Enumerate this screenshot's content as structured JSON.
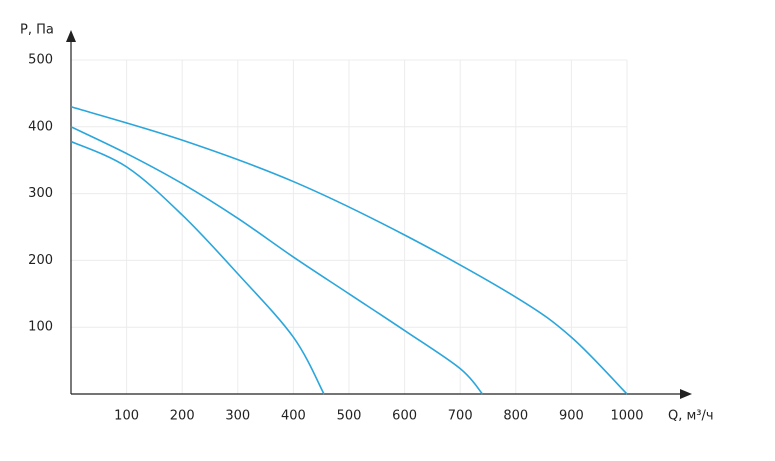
{
  "chart_data": {
    "type": "line",
    "y_label": "P, Па",
    "x_label": "Q, м³/ч",
    "xlim": [
      0,
      1000
    ],
    "ylim": [
      0,
      500
    ],
    "xticks": [
      100,
      200,
      300,
      400,
      500,
      600,
      700,
      800,
      900,
      1000
    ],
    "yticks": [
      100,
      200,
      300,
      400,
      500
    ],
    "grid": true,
    "series": [
      {
        "color": "#2aa6dc",
        "x": [
          0,
          100,
          200,
          300,
          400,
          455
        ],
        "values": [
          378,
          340,
          268,
          180,
          85,
          0
        ]
      },
      {
        "color": "#2aa6dc",
        "x": [
          0,
          100,
          200,
          300,
          400,
          500,
          600,
          700,
          740
        ],
        "values": [
          400,
          360,
          315,
          263,
          205,
          150,
          95,
          38,
          0
        ]
      },
      {
        "color": "#2aa6dc",
        "x": [
          0,
          200,
          400,
          600,
          800,
          900,
          1000
        ],
        "values": [
          430,
          380,
          318,
          238,
          145,
          85,
          0
        ]
      }
    ]
  }
}
